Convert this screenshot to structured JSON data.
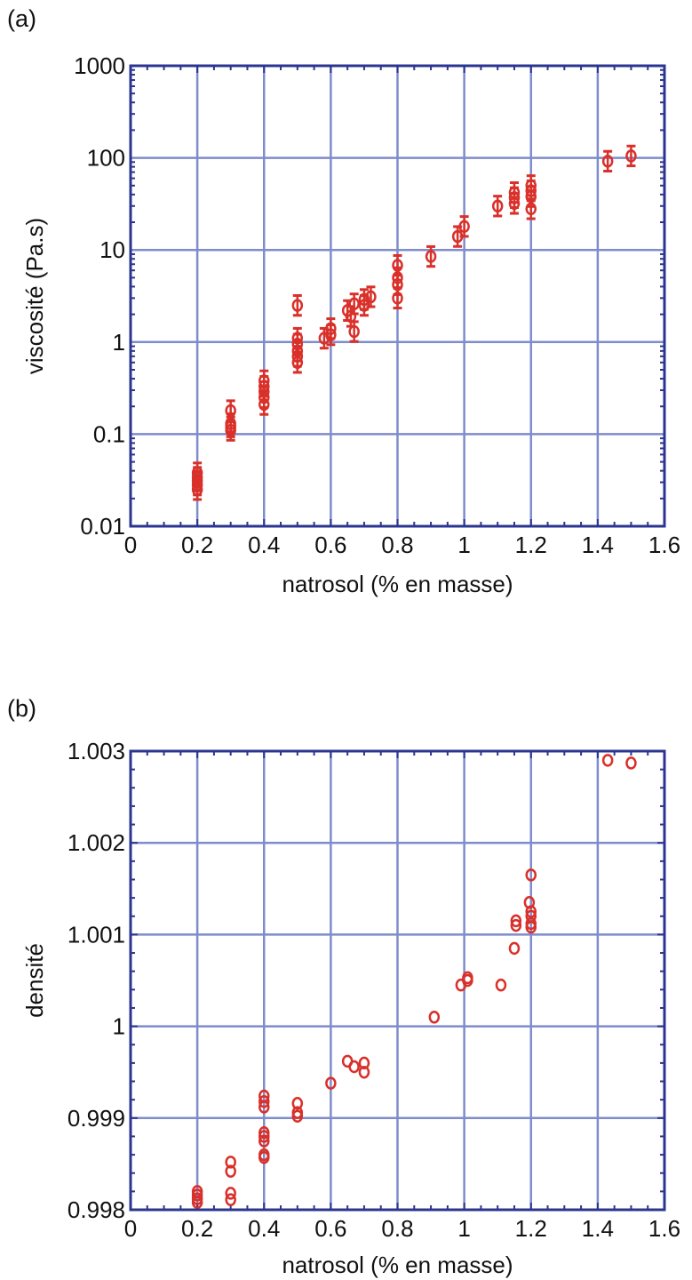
{
  "chart_data": [
    {
      "panel_label": "(a)",
      "type": "scatter",
      "xlabel": "natrosol (% en masse)",
      "ylabel": "viscosité (Pa.s)",
      "xlim": [
        0,
        1.6
      ],
      "ylim": [
        0.01,
        1000
      ],
      "yscale": "log",
      "grid": true,
      "error_bars": true,
      "marker": "open-circle",
      "color": "#d9302a",
      "frame_color": "#2b3590",
      "grid_color": "#7f8ccc",
      "x_ticks": [
        "0",
        "0.2",
        "0.4",
        "0.6",
        "0.8",
        "1",
        "1.2",
        "1.4",
        "1.6"
      ],
      "y_ticks": [
        "0.01",
        "0.1",
        "1",
        "10",
        "100",
        "1000"
      ],
      "points": [
        {
          "x": 0.2,
          "y": 0.025
        },
        {
          "x": 0.2,
          "y": 0.028
        },
        {
          "x": 0.2,
          "y": 0.031
        },
        {
          "x": 0.2,
          "y": 0.034
        },
        {
          "x": 0.2,
          "y": 0.038
        },
        {
          "x": 0.3,
          "y": 0.11
        },
        {
          "x": 0.3,
          "y": 0.12
        },
        {
          "x": 0.3,
          "y": 0.13
        },
        {
          "x": 0.3,
          "y": 0.18
        },
        {
          "x": 0.4,
          "y": 0.21
        },
        {
          "x": 0.4,
          "y": 0.25
        },
        {
          "x": 0.4,
          "y": 0.29
        },
        {
          "x": 0.4,
          "y": 0.33
        },
        {
          "x": 0.4,
          "y": 0.38
        },
        {
          "x": 0.5,
          "y": 0.6
        },
        {
          "x": 0.5,
          "y": 0.7
        },
        {
          "x": 0.5,
          "y": 0.8
        },
        {
          "x": 0.5,
          "y": 0.95
        },
        {
          "x": 0.5,
          "y": 1.1
        },
        {
          "x": 0.5,
          "y": 2.5
        },
        {
          "x": 0.58,
          "y": 1.1
        },
        {
          "x": 0.6,
          "y": 1.2
        },
        {
          "x": 0.6,
          "y": 1.4
        },
        {
          "x": 0.65,
          "y": 2.2
        },
        {
          "x": 0.66,
          "y": 1.9
        },
        {
          "x": 0.67,
          "y": 2.6
        },
        {
          "x": 0.67,
          "y": 1.3
        },
        {
          "x": 0.7,
          "y": 2.5
        },
        {
          "x": 0.7,
          "y": 2.9
        },
        {
          "x": 0.72,
          "y": 3.1
        },
        {
          "x": 0.8,
          "y": 3.0
        },
        {
          "x": 0.8,
          "y": 4.2
        },
        {
          "x": 0.8,
          "y": 5.0
        },
        {
          "x": 0.8,
          "y": 6.8
        },
        {
          "x": 0.9,
          "y": 8.5
        },
        {
          "x": 0.98,
          "y": 14
        },
        {
          "x": 1.0,
          "y": 18
        },
        {
          "x": 1.1,
          "y": 30
        },
        {
          "x": 1.15,
          "y": 32
        },
        {
          "x": 1.15,
          "y": 37
        },
        {
          "x": 1.15,
          "y": 42
        },
        {
          "x": 1.2,
          "y": 28
        },
        {
          "x": 1.2,
          "y": 38
        },
        {
          "x": 1.2,
          "y": 44
        },
        {
          "x": 1.2,
          "y": 50
        },
        {
          "x": 1.43,
          "y": 92
        },
        {
          "x": 1.5,
          "y": 105
        }
      ]
    },
    {
      "panel_label": "(b)",
      "type": "scatter",
      "xlabel": "natrosol (% en masse)",
      "ylabel": "densité",
      "xlim": [
        0,
        1.6
      ],
      "ylim": [
        0.998,
        1.003
      ],
      "grid": true,
      "marker": "open-circle",
      "color": "#d9302a",
      "frame_color": "#2b3590",
      "grid_color": "#7f8ccc",
      "x_ticks": [
        "0",
        "0.2",
        "0.4",
        "0.6",
        "0.8",
        "1",
        "1.2",
        "1.4",
        "1.6"
      ],
      "y_ticks": [
        "0.998",
        "0.999",
        "1",
        "1.001",
        "1.002",
        "1.003"
      ],
      "points": [
        {
          "x": 0.2,
          "y": 0.99808
        },
        {
          "x": 0.2,
          "y": 0.99812
        },
        {
          "x": 0.2,
          "y": 0.99816
        },
        {
          "x": 0.2,
          "y": 0.9982
        },
        {
          "x": 0.3,
          "y": 0.99811
        },
        {
          "x": 0.3,
          "y": 0.99818
        },
        {
          "x": 0.3,
          "y": 0.99842
        },
        {
          "x": 0.3,
          "y": 0.99852
        },
        {
          "x": 0.4,
          "y": 0.99857
        },
        {
          "x": 0.4,
          "y": 0.9986
        },
        {
          "x": 0.4,
          "y": 0.99875
        },
        {
          "x": 0.4,
          "y": 0.9988
        },
        {
          "x": 0.4,
          "y": 0.99884
        },
        {
          "x": 0.4,
          "y": 0.99912
        },
        {
          "x": 0.4,
          "y": 0.99918
        },
        {
          "x": 0.4,
          "y": 0.99924
        },
        {
          "x": 0.5,
          "y": 0.99902
        },
        {
          "x": 0.5,
          "y": 0.99906
        },
        {
          "x": 0.5,
          "y": 0.99916
        },
        {
          "x": 0.6,
          "y": 0.99938
        },
        {
          "x": 0.65,
          "y": 0.99962
        },
        {
          "x": 0.67,
          "y": 0.99956
        },
        {
          "x": 0.7,
          "y": 0.9995
        },
        {
          "x": 0.7,
          "y": 0.9996
        },
        {
          "x": 0.91,
          "y": 1.0001
        },
        {
          "x": 0.99,
          "y": 1.00045
        },
        {
          "x": 1.01,
          "y": 1.0005
        },
        {
          "x": 1.01,
          "y": 1.00053
        },
        {
          "x": 1.11,
          "y": 1.00045
        },
        {
          "x": 1.15,
          "y": 1.00085
        },
        {
          "x": 1.155,
          "y": 1.0011
        },
        {
          "x": 1.155,
          "y": 1.00115
        },
        {
          "x": 1.195,
          "y": 1.00135
        },
        {
          "x": 1.2,
          "y": 1.00108
        },
        {
          "x": 1.2,
          "y": 1.00112
        },
        {
          "x": 1.2,
          "y": 1.0012
        },
        {
          "x": 1.2,
          "y": 1.00125
        },
        {
          "x": 1.2,
          "y": 1.00165
        },
        {
          "x": 1.43,
          "y": 1.0029
        },
        {
          "x": 1.5,
          "y": 1.00287
        }
      ]
    }
  ]
}
